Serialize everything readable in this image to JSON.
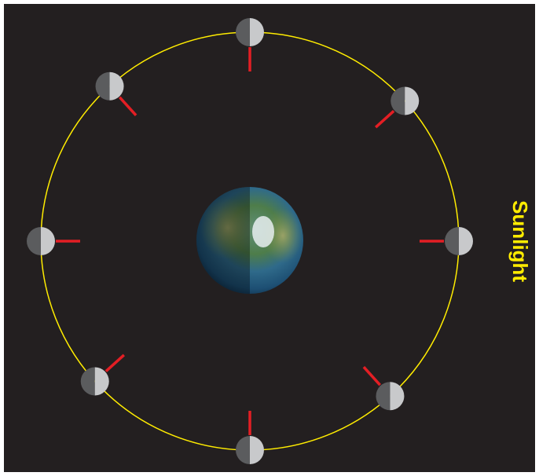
{
  "label": "Sunlight"
}
